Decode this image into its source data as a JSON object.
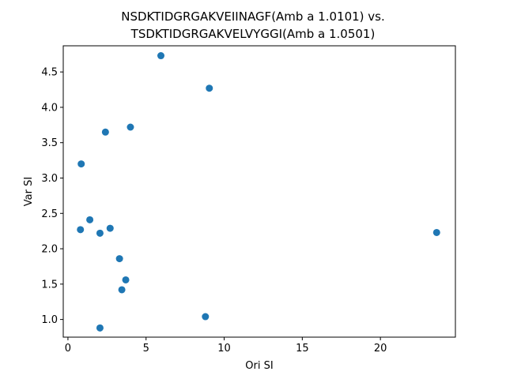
{
  "chart_data": {
    "type": "scatter",
    "title_line1": "NSDKTIDGRGAKVEIINAGF(Amb a 1.0101) vs.",
    "title_line2": "TSDKTIDGRGAKVELVYGGI(Amb a 1.0501)",
    "xlabel": "Ori SI",
    "ylabel": "Var SI",
    "xlim": [
      -0.3,
      24.8
    ],
    "ylim": [
      0.75,
      4.87
    ],
    "xticks": [
      0,
      5,
      10,
      15,
      20
    ],
    "yticks": [
      1.0,
      1.5,
      2.0,
      2.5,
      3.0,
      3.5,
      4.0,
      4.5
    ],
    "xtick_labels": [
      "0",
      "5",
      "10",
      "15",
      "20"
    ],
    "ytick_labels": [
      "1.0",
      "1.5",
      "2.0",
      "2.5",
      "3.0",
      "3.5",
      "4.0",
      "4.5"
    ],
    "marker_color": "#1f77b4",
    "grid": false,
    "points": [
      {
        "x": 5.95,
        "y": 4.73
      },
      {
        "x": 9.05,
        "y": 4.27
      },
      {
        "x": 2.4,
        "y": 3.65
      },
      {
        "x": 4.0,
        "y": 3.72
      },
      {
        "x": 0.85,
        "y": 3.2
      },
      {
        "x": 1.4,
        "y": 2.41
      },
      {
        "x": 0.8,
        "y": 2.27
      },
      {
        "x": 2.05,
        "y": 2.22
      },
      {
        "x": 2.7,
        "y": 2.29
      },
      {
        "x": 23.6,
        "y": 2.23
      },
      {
        "x": 3.3,
        "y": 1.86
      },
      {
        "x": 3.7,
        "y": 1.56
      },
      {
        "x": 3.45,
        "y": 1.42
      },
      {
        "x": 8.8,
        "y": 1.04
      },
      {
        "x": 2.05,
        "y": 0.88
      }
    ]
  }
}
